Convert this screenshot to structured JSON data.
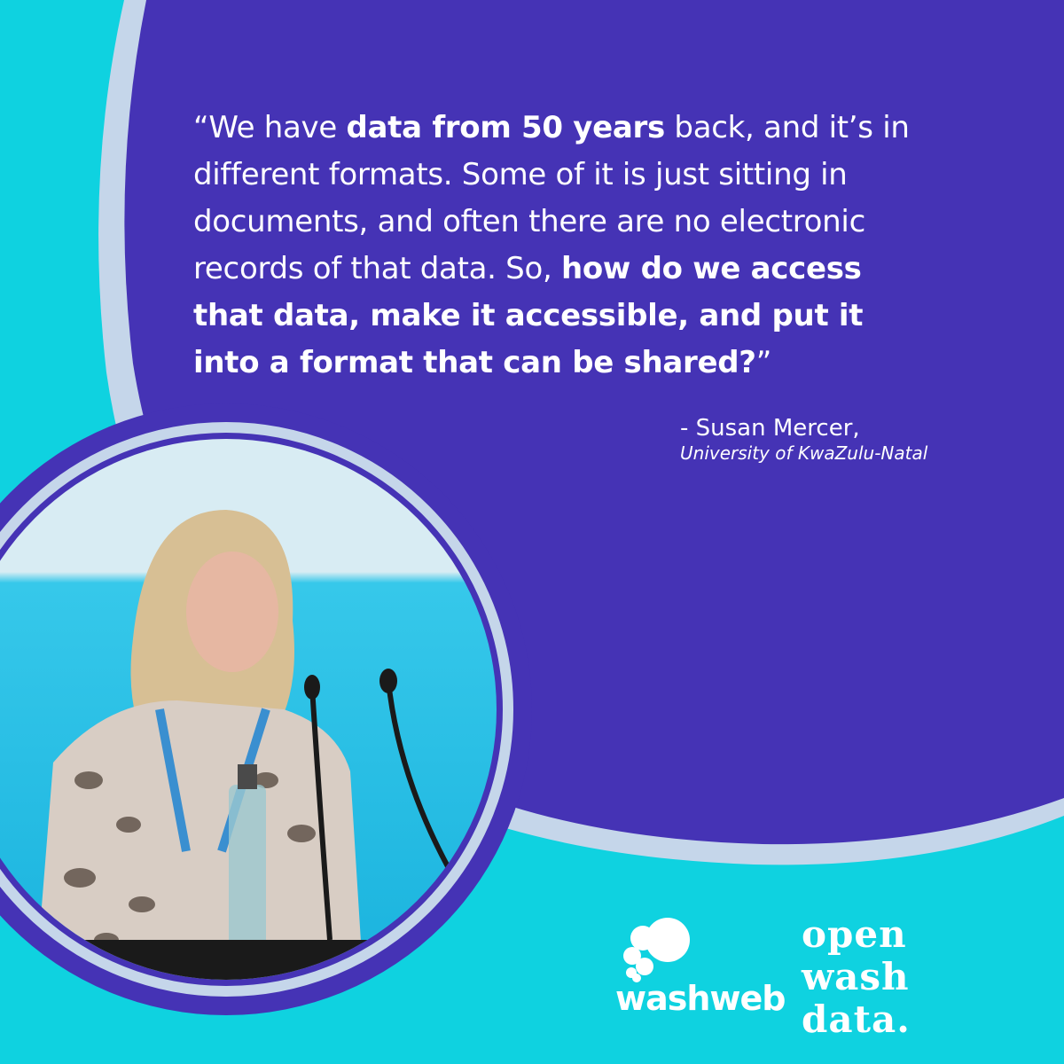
{
  "quote": {
    "lines": [
      [
        {
          "t": "“We have ",
          "b": false
        },
        {
          "t": "data from 50 years",
          "b": true
        },
        {
          "t": " back, and it’s in",
          "b": false
        }
      ],
      [
        {
          "t": "different formats. Some of it is just sitting in",
          "b": false
        }
      ],
      [
        {
          "t": "documents, and often there are no electronic",
          "b": false
        }
      ],
      [
        {
          "t": "records of that data. So, ",
          "b": false
        },
        {
          "t": "how do we access",
          "b": true
        }
      ],
      [
        {
          "t": "that data, make it accessible, and put it",
          "b": true
        }
      ],
      [
        {
          "t": "into a format that can be shared?",
          "b": true
        },
        {
          "t": "”",
          "b": false
        }
      ]
    ]
  },
  "attribution": {
    "name": "- Susan Mercer,",
    "organization": "University of KwaZulu-Natal"
  },
  "logos": {
    "washweb": "washweb",
    "openwashdata": [
      "open",
      "wash",
      "data."
    ]
  },
  "colors": {
    "purple": "#4533b5",
    "cyan": "#0fd2e0",
    "ring": "#c5d6ea",
    "white": "#ffffff"
  }
}
